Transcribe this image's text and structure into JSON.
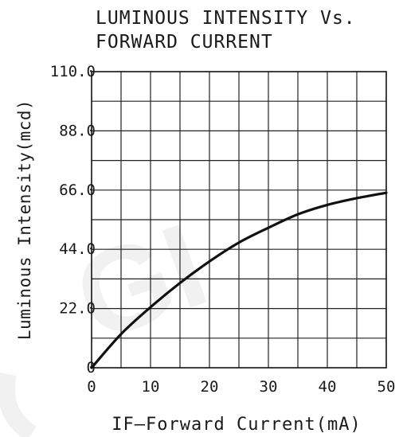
{
  "chart_data": {
    "type": "line",
    "title_lines": [
      "LUMINOUS INTENSITY Vs.",
      "FORWARD CURRENT"
    ],
    "xlabel": "IF—Forward Current(mA)",
    "ylabel": "Luminous Intensity(mcd)",
    "x_ticks": [
      "0",
      "10",
      "20",
      "30",
      "40",
      "50"
    ],
    "y_ticks": [
      "0",
      "22.0",
      "44.0",
      "66.0",
      "88.0",
      "110.0"
    ],
    "xlim": [
      0,
      50
    ],
    "ylim": [
      0,
      110
    ],
    "grid": true,
    "series": [
      {
        "x": [
          0,
          5,
          10,
          15,
          20,
          25,
          30,
          35,
          40,
          45,
          50
        ],
        "y": [
          0,
          12.5,
          22.5,
          31.5,
          39.5,
          46.5,
          52,
          57,
          60.5,
          63,
          65
        ],
        "color": "#111111"
      }
    ]
  },
  "watermark": {
    "text": "GI",
    "color": "#e8e8e8"
  }
}
